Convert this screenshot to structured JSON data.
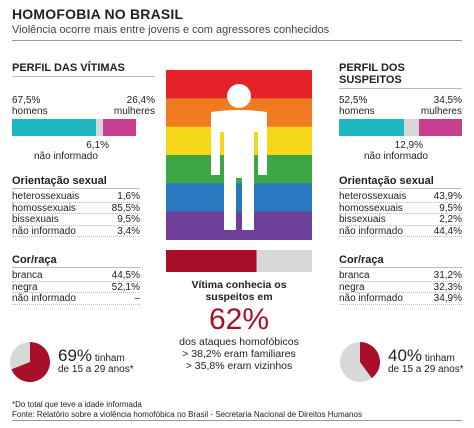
{
  "title": "HOMOFOBIA NO BRASIL",
  "subtitle": "Violência ocorre mais entre jovens e com agressores conhecidos",
  "colors": {
    "teal": "#1fb8c0",
    "magenta": "#c83e8e",
    "gray": "#d8d8d8",
    "darkred": "#a8102a",
    "rainbow": [
      "#e42127",
      "#f07b20",
      "#f6d81a",
      "#3fa646",
      "#2a78c0",
      "#6e3f96"
    ]
  },
  "victims": {
    "heading": "PERFIL DAS VÍTIMAS",
    "homens_pct": "67,5%",
    "homens_label": "homens",
    "mulheres_pct": "26,4%",
    "mulheres_label": "mulheres",
    "ni_pct": "6,1%",
    "ni_label": "não informado",
    "orient_heading": "Orientação sexual",
    "orient": [
      {
        "label": "heterossexuais",
        "value": "1,6%"
      },
      {
        "label": "homossexuais",
        "value": "85,5%"
      },
      {
        "label": "bissexuais",
        "value": "9,5%"
      },
      {
        "label": "não informado",
        "value": "3,4%"
      }
    ],
    "race_heading": "Cor/raça",
    "race": [
      {
        "label": "branca",
        "value": "44,5%"
      },
      {
        "label": "negra",
        "value": "52,1%"
      },
      {
        "label": "não informado",
        "value": "–"
      }
    ],
    "age_pct": "69%",
    "age_text1": "tinham",
    "age_text2": "de 15 a 29 anos*"
  },
  "suspects": {
    "heading": "PERFIL DOS SUSPEITOS",
    "homens_pct": "52,5%",
    "homens_label": "homens",
    "mulheres_pct": "34,5%",
    "mulheres_label": "mulheres",
    "ni_pct": "12,9%",
    "ni_label": "não informado",
    "orient_heading": "Orientação sexual",
    "orient": [
      {
        "label": "heterossexuais",
        "value": "43,9%"
      },
      {
        "label": "homossexuais",
        "value": "9,5%"
      },
      {
        "label": "bissexuais",
        "value": "2,2%"
      },
      {
        "label": "não informado",
        "value": "44,4%"
      }
    ],
    "race_heading": "Cor/raça",
    "race": [
      {
        "label": "branca",
        "value": "31,2%"
      },
      {
        "label": "negra",
        "value": "32,3%"
      },
      {
        "label": "não informado",
        "value": "34,9%"
      }
    ],
    "age_pct": "40%",
    "age_text1": "tinham",
    "age_text2": "de 15 a 29 anos*"
  },
  "center": {
    "line1": "Vítima conhecia os",
    "line2": "suspeitos em",
    "big_pct": "62%",
    "line3": "dos ataques homofóbicos",
    "line4": "> 38,2% eram familiares",
    "line5": "> 35,8% eram vizinhos"
  },
  "footnote": "*Do total que teve a idade informada",
  "source": "Fonte: Relatório sobre a violência homofóbica no Brasil - Secretaria Nacional de Direitos Humanos",
  "chart_data": [
    {
      "type": "bar",
      "title": "PERFIL DAS VÍTIMAS",
      "categories": [
        "homens",
        "mulheres",
        "não informado"
      ],
      "values": [
        67.5,
        26.4,
        6.1
      ]
    },
    {
      "type": "bar",
      "title": "PERFIL DOS SUSPEITOS",
      "categories": [
        "homens",
        "mulheres",
        "não informado"
      ],
      "values": [
        52.5,
        34.5,
        12.9
      ]
    },
    {
      "type": "table",
      "title": "Orientação sexual",
      "categories": [
        "heterossexuais",
        "homossexuais",
        "bissexuais",
        "não informado"
      ],
      "series": [
        {
          "name": "PERFIL DAS VÍTIMAS",
          "values": [
            1.6,
            85.5,
            9.5,
            3.4
          ]
        },
        {
          "name": "PERFIL DOS SUSPEITOS",
          "values": [
            43.9,
            9.5,
            2.2,
            44.4
          ]
        }
      ]
    },
    {
      "type": "table",
      "title": "Cor/raça",
      "categories": [
        "branca",
        "negra",
        "não informado"
      ],
      "series": [
        {
          "name": "PERFIL DAS VÍTIMAS",
          "values": [
            44.5,
            52.1,
            null
          ]
        },
        {
          "name": "PERFIL DOS SUSPEITOS",
          "values": [
            31.2,
            32.3,
            34.9
          ]
        }
      ]
    },
    {
      "type": "pie",
      "categories": [
        "de 15 a 29 anos"
      ],
      "values": [
        69
      ]
    },
    {
      "type": "pie",
      "categories": [
        "de 15 a 29 anos"
      ],
      "values": [
        40
      ]
    },
    {
      "type": "bar",
      "categories": [
        "Vítima conhecia os suspeitos"
      ],
      "values": [
        62
      ]
    }
  ]
}
